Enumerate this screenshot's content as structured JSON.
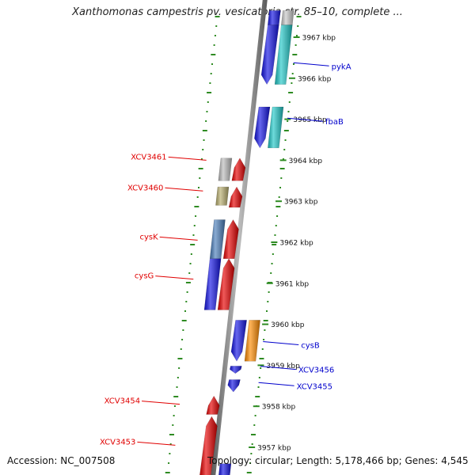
{
  "title": "Xanthomonas campestris pv. vesicatoria str. 85–10, complete ...",
  "footer": {
    "accession": "Accession: NC_007508",
    "info": "Topology: circular; Length: 5,178,466 bp; Genes: 4,545"
  },
  "colors": {
    "backbone": "#8a8a8a",
    "ticks": "#2e8b22",
    "forward_label": "#e00000",
    "reverse_label": "#0000cc"
  },
  "scale_labels": [
    {
      "text": "3967 kbp",
      "kbp": 3967
    },
    {
      "text": "3966 kbp",
      "kbp": 3966
    },
    {
      "text": "3965 kbp",
      "kbp": 3965
    },
    {
      "text": "3964 kbp",
      "kbp": 3964
    },
    {
      "text": "3963 kbp",
      "kbp": 3963
    },
    {
      "text": "3962 kbp",
      "kbp": 3962
    },
    {
      "text": "3961 kbp",
      "kbp": 3961
    },
    {
      "text": "3960 kbp",
      "kbp": 3960
    },
    {
      "text": "3959 kbp",
      "kbp": 3959
    },
    {
      "text": "3958 kbp",
      "kbp": 3958
    },
    {
      "text": "3957 kbp",
      "kbp": 3957
    }
  ],
  "genes": [
    {
      "label": "",
      "strand": "reverse",
      "start_kbp": 3967.65,
      "end_kbp": 3967.3,
      "lane": "inner",
      "color": "#1414e6",
      "arrow": false
    },
    {
      "label": "",
      "strand": "reverse",
      "start_kbp": 3967.65,
      "end_kbp": 3967.3,
      "lane": "outer",
      "color": "#c8c8c8",
      "arrow": false
    },
    {
      "label": "pykA",
      "strand": "reverse",
      "start_kbp": 3967.3,
      "end_kbp": 3965.85,
      "lane": "inner",
      "color": "#1414e6",
      "arrow": true
    },
    {
      "label": "pykA",
      "strand": "reverse",
      "start_kbp": 3967.3,
      "end_kbp": 3965.85,
      "lane": "outer",
      "color": "#20c8c8",
      "arrow": false
    },
    {
      "label": "fbaB",
      "strand": "reverse",
      "start_kbp": 3965.3,
      "end_kbp": 3964.3,
      "lane": "inner",
      "color": "#1414e6",
      "arrow": true
    },
    {
      "label": "fbaB",
      "strand": "reverse",
      "start_kbp": 3965.3,
      "end_kbp": 3964.3,
      "lane": "outer",
      "color": "#20c8c8",
      "arrow": false
    },
    {
      "label": "XCV3461",
      "strand": "forward",
      "start_kbp": 3963.5,
      "end_kbp": 3964.05,
      "lane": "inner",
      "color": "#e80000",
      "arrow": true
    },
    {
      "label": "XCV3461",
      "strand": "forward",
      "start_kbp": 3963.5,
      "end_kbp": 3964.05,
      "lane": "outer",
      "color": "#bcbcbc",
      "arrow": false
    },
    {
      "label": "XCV3460",
      "strand": "forward",
      "start_kbp": 3962.85,
      "end_kbp": 3963.35,
      "lane": "inner",
      "color": "#e80000",
      "arrow": true
    },
    {
      "label": "XCV3460",
      "strand": "forward",
      "start_kbp": 3962.9,
      "end_kbp": 3963.35,
      "lane": "outer",
      "color": "#b8ae6e",
      "arrow": false
    },
    {
      "label": "cysK",
      "strand": "forward",
      "start_kbp": 3961.6,
      "end_kbp": 3962.55,
      "lane": "inner",
      "color": "#e80000",
      "arrow": true
    },
    {
      "label": "cysK",
      "strand": "forward",
      "start_kbp": 3961.6,
      "end_kbp": 3962.55,
      "lane": "outer",
      "color": "#4a7ebb",
      "arrow": false
    },
    {
      "label": "cysG",
      "strand": "forward",
      "start_kbp": 3960.35,
      "end_kbp": 3961.6,
      "lane": "inner",
      "color": "#e80000",
      "arrow": true
    },
    {
      "label": "cysG",
      "strand": "forward",
      "start_kbp": 3960.35,
      "end_kbp": 3961.6,
      "lane": "outer",
      "color": "#1414e6",
      "arrow": false
    },
    {
      "label": "cysB",
      "strand": "reverse",
      "start_kbp": 3960.1,
      "end_kbp": 3959.1,
      "lane": "inner",
      "color": "#1414e6",
      "arrow": true
    },
    {
      "label": "cysB",
      "strand": "reverse",
      "start_kbp": 3960.1,
      "end_kbp": 3959.1,
      "lane": "outer",
      "color": "#ff8c00",
      "arrow": false
    },
    {
      "label": "XCV3456",
      "strand": "reverse",
      "start_kbp": 3958.98,
      "end_kbp": 3958.8,
      "lane": "inner",
      "color": "#1414e6",
      "arrow": true
    },
    {
      "label": "XCV3455",
      "strand": "reverse",
      "start_kbp": 3958.65,
      "end_kbp": 3958.35,
      "lane": "inner",
      "color": "#1414e6",
      "arrow": true
    },
    {
      "label": "XCV3454",
      "strand": "forward",
      "start_kbp": 3957.8,
      "end_kbp": 3958.25,
      "lane": "inner",
      "color": "#e80000",
      "arrow": true
    },
    {
      "label": "XCV3453",
      "strand": "forward",
      "start_kbp": 3956.3,
      "end_kbp": 3957.75,
      "lane": "inner",
      "color": "#e80000",
      "arrow": true
    },
    {
      "label": "",
      "strand": "reverse",
      "start_kbp": 3956.6,
      "end_kbp": 3956.3,
      "lane": "inner",
      "color": "#1414e6",
      "arrow": false
    }
  ],
  "gene_labels": [
    {
      "text": "pykA",
      "strand": "reverse",
      "kbp": 3966.3
    },
    {
      "text": "fbaB",
      "strand": "reverse",
      "kbp": 3964.95
    },
    {
      "text": "XCV3461",
      "strand": "forward",
      "kbp": 3964.0
    },
    {
      "text": "XCV3460",
      "strand": "forward",
      "kbp": 3963.25
    },
    {
      "text": "cysK",
      "strand": "forward",
      "kbp": 3962.05
    },
    {
      "text": "cysG",
      "strand": "forward",
      "kbp": 3961.1
    },
    {
      "text": "cysB",
      "strand": "reverse",
      "kbp": 3959.5
    },
    {
      "text": "XCV3456",
      "strand": "reverse",
      "kbp": 3958.9
    },
    {
      "text": "XCV3455",
      "strand": "reverse",
      "kbp": 3958.5
    },
    {
      "text": "XCV3454",
      "strand": "forward",
      "kbp": 3958.05
    },
    {
      "text": "XCV3453",
      "strand": "forward",
      "kbp": 3957.05
    }
  ]
}
